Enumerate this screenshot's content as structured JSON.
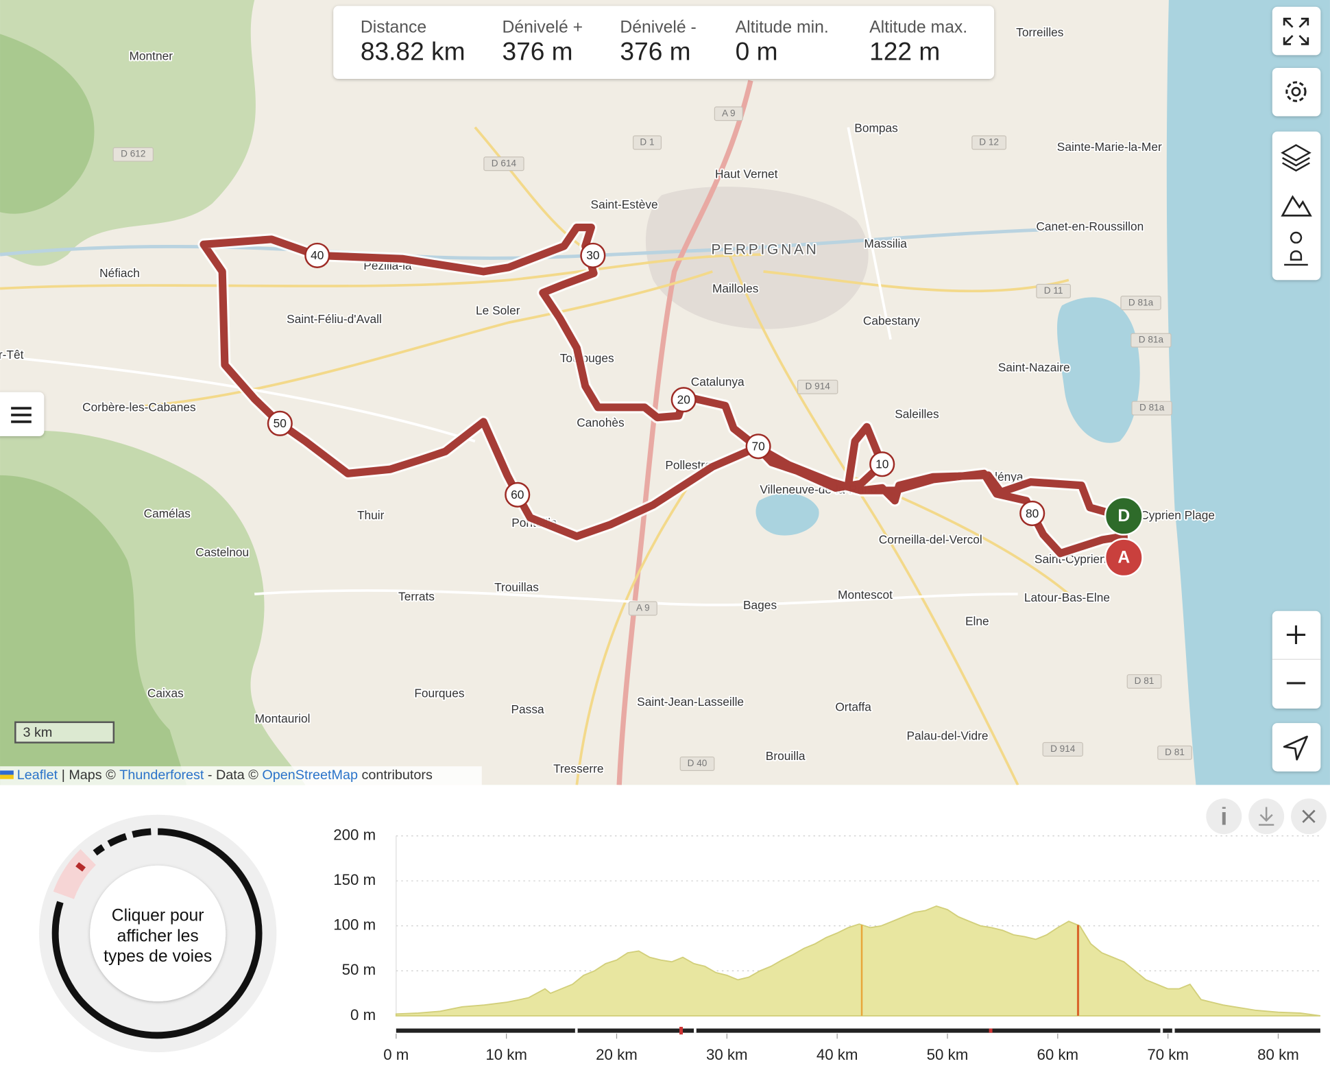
{
  "stats": [
    {
      "label": "Distance",
      "value": "83.82 km"
    },
    {
      "label": "Dénivelé +",
      "value": "376 m"
    },
    {
      "label": "Dénivelé -",
      "value": "376 m"
    },
    {
      "label": "Altitude min.",
      "value": "0 m"
    },
    {
      "label": "Altitude max.",
      "value": "122 m"
    }
  ],
  "places": [
    "Montner",
    "Torreilles",
    "Bompas",
    "Haut Vernet",
    "Sainte-Marie-la-Mer",
    "Saint-Estève",
    "PERPIGNAN",
    "Massilia",
    "Canet-en-Roussillon",
    "Néfiach",
    "Pezilla-la",
    "Saint-Féliu-d'Avall",
    "Le Soler",
    "Mailloles",
    "Cabestany",
    "Saint-Nazaire",
    "Toulouges",
    "Catalunya",
    "Canohès",
    "Saleilles",
    "Corbère-les-Cabanes",
    "Pollestres",
    "Villeneuve-de-la-Raho",
    "Alénya",
    "Saint-Cyprien Plage",
    "Saint-Cyprien",
    "Corneilla-del-Vercol",
    "Camélas",
    "Thuir",
    "Castelnou",
    "Ponteilla",
    "Terrats",
    "Trouillas",
    "Bages",
    "Montescot",
    "Latour-Bas-Elne",
    "Elne",
    "Caixas",
    "Fourques",
    "Montauriol",
    "Passa",
    "Saint-Jean-Lasseille",
    "Ortaffa",
    "Palau-del-Vidre",
    "Brouilla",
    "Tresserre",
    "r-Têt"
  ],
  "roads": [
    "A 9",
    "D 1",
    "D 612",
    "D 614",
    "D 12",
    "D 11",
    "D 81a",
    "D 81a",
    "D 81a",
    "D 914",
    "A 9",
    "D 81",
    "D 914",
    "D 81",
    "D 40"
  ],
  "route": {
    "markers": [
      10,
      20,
      30,
      40,
      50,
      60,
      70,
      80
    ],
    "start": "D",
    "end": "A"
  },
  "scale": "3 km",
  "attribution": {
    "leaflet": "Leaflet",
    "maps": " | Maps © ",
    "thunderforest": "Thunderforest",
    "data": " - Data © ",
    "osm": "OpenStreetMap",
    "contributors": " contributors"
  },
  "road_types": {
    "prompt": [
      "Cliquer pour",
      "afficher les",
      "types de voies"
    ]
  },
  "profile": {
    "xlim": [
      0,
      84
    ],
    "ylim": [
      0,
      200
    ],
    "yticks": [
      {
        "value": 0,
        "label": "0 m"
      },
      {
        "value": 50,
        "label": "50 m"
      },
      {
        "value": 100,
        "label": "100 m"
      },
      {
        "value": 150,
        "label": "150 m"
      },
      {
        "value": 200,
        "label": "200 m"
      }
    ],
    "xticks": [
      {
        "value": 0,
        "label": "0 m"
      },
      {
        "value": 10,
        "label": "10 km"
      },
      {
        "value": 20,
        "label": "20 km"
      },
      {
        "value": 30,
        "label": "30 km"
      },
      {
        "value": 40,
        "label": "40 km"
      },
      {
        "value": 50,
        "label": "50 km"
      },
      {
        "value": 60,
        "label": "60 km"
      },
      {
        "value": 70,
        "label": "70 km"
      },
      {
        "value": 80,
        "label": "80 km"
      }
    ],
    "distance": [
      0,
      2,
      4,
      6,
      8,
      10,
      12,
      13.5,
      14,
      16,
      17,
      18,
      19,
      20,
      21,
      22,
      23,
      24,
      25,
      26,
      27,
      28,
      29,
      30,
      31,
      32,
      33,
      34,
      35,
      36,
      37,
      38,
      39,
      40,
      41,
      42,
      43,
      44,
      45,
      46,
      47,
      48,
      49,
      50,
      51,
      52,
      53,
      54,
      55,
      56,
      57,
      58,
      59,
      60,
      61,
      62,
      63,
      64,
      65,
      66,
      67,
      68,
      69,
      70,
      71,
      72,
      73,
      74,
      75,
      76,
      77,
      78,
      79,
      80,
      82,
      83.82
    ],
    "elevation": [
      2,
      3,
      5,
      10,
      12,
      15,
      20,
      30,
      25,
      35,
      45,
      50,
      58,
      62,
      70,
      72,
      65,
      62,
      60,
      65,
      58,
      55,
      48,
      45,
      40,
      43,
      50,
      55,
      62,
      68,
      75,
      80,
      87,
      92,
      98,
      102,
      98,
      100,
      105,
      110,
      115,
      117,
      122,
      118,
      110,
      105,
      100,
      98,
      95,
      90,
      88,
      85,
      90,
      98,
      105,
      100,
      80,
      70,
      65,
      60,
      50,
      40,
      35,
      30,
      30,
      35,
      18,
      15,
      12,
      10,
      8,
      6,
      5,
      4,
      3,
      0
    ]
  }
}
